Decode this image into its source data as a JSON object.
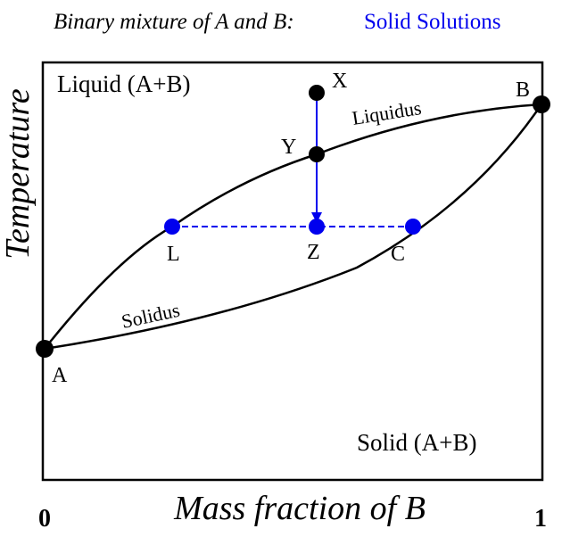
{
  "title": {
    "prefix": "Binary mixture of A and B:",
    "highlight": "Solid Solutions"
  },
  "regions": {
    "liquid": "Liquid (A+B)",
    "solid": "Solid (A+B)"
  },
  "curves": {
    "liquidus": "Liquidus",
    "solidus": "Solidus"
  },
  "points": {
    "x": "X",
    "y": "Y",
    "z": "Z",
    "l": "L",
    "c": "C",
    "a": "A",
    "b": "B"
  },
  "axes": {
    "y_label": "Temperature",
    "x_label": "Mass fraction of B",
    "x_min": "0",
    "x_max": "1"
  }
}
